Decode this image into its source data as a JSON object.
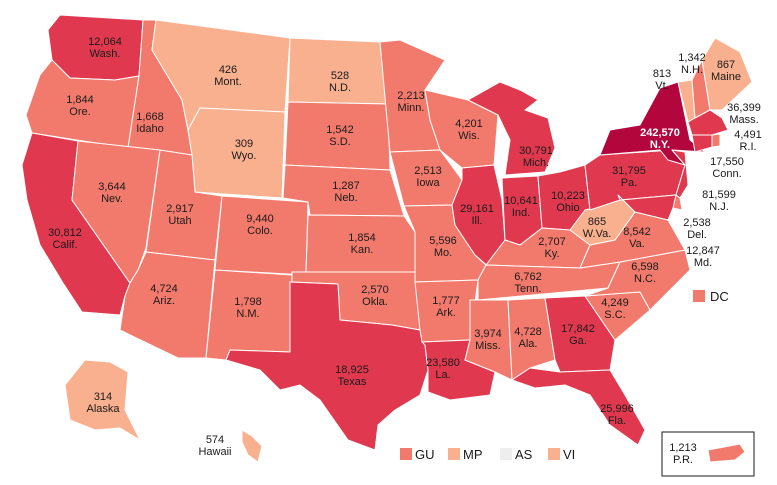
{
  "colors": {
    "level1": "#f9b08f",
    "level2": "#f27a6c",
    "level3": "#e0394f",
    "level4": "#b3063d",
    "none": "#eeeeee",
    "text_dark": "#1a1a1a",
    "text_light": "#ffffff"
  },
  "states": [
    {
      "id": "wa",
      "value": "12,064",
      "abbr": "Wash.",
      "level": 3
    },
    {
      "id": "or",
      "value": "1,844",
      "abbr": "Ore.",
      "level": 2
    },
    {
      "id": "ca",
      "value": "30,812",
      "abbr": "Calif.",
      "level": 3
    },
    {
      "id": "id",
      "value": "1,668",
      "abbr": "Idaho",
      "level": 2
    },
    {
      "id": "nv",
      "value": "3,644",
      "abbr": "Nev.",
      "level": 2
    },
    {
      "id": "mt",
      "value": "426",
      "abbr": "Mont.",
      "level": 1
    },
    {
      "id": "wy",
      "value": "309",
      "abbr": "Wyo.",
      "level": 1
    },
    {
      "id": "ut",
      "value": "2,917",
      "abbr": "Utah",
      "level": 2
    },
    {
      "id": "co",
      "value": "9,440",
      "abbr": "Colo.",
      "level": 2
    },
    {
      "id": "az",
      "value": "4,724",
      "abbr": "Ariz.",
      "level": 2
    },
    {
      "id": "nm",
      "value": "1,798",
      "abbr": "N.M.",
      "level": 2
    },
    {
      "id": "nd",
      "value": "528",
      "abbr": "N.D.",
      "level": 1
    },
    {
      "id": "sd",
      "value": "1,542",
      "abbr": "S.D.",
      "level": 2
    },
    {
      "id": "ne",
      "value": "1,287",
      "abbr": "Neb.",
      "level": 2
    },
    {
      "id": "ks",
      "value": "1,854",
      "abbr": "Kan.",
      "level": 2
    },
    {
      "id": "ok",
      "value": "2,570",
      "abbr": "Okla.",
      "level": 2
    },
    {
      "id": "tx",
      "value": "18,925",
      "abbr": "Texas",
      "level": 3
    },
    {
      "id": "mn",
      "value": "2,213",
      "abbr": "Minn.",
      "level": 2
    },
    {
      "id": "ia",
      "value": "2,513",
      "abbr": "Iowa",
      "level": 2
    },
    {
      "id": "mo",
      "value": "5,596",
      "abbr": "Mo.",
      "level": 2
    },
    {
      "id": "ar",
      "value": "1,777",
      "abbr": "Ark.",
      "level": 2
    },
    {
      "id": "la",
      "value": "23,580",
      "abbr": "La.",
      "level": 3
    },
    {
      "id": "wi",
      "value": "4,201",
      "abbr": "Wis.",
      "level": 2
    },
    {
      "id": "il",
      "value": "29,161",
      "abbr": "Ill.",
      "level": 3
    },
    {
      "id": "mi",
      "value": "30,791",
      "abbr": "Mich.",
      "level": 3
    },
    {
      "id": "in",
      "value": "10,641",
      "abbr": "Ind.",
      "level": 3
    },
    {
      "id": "oh",
      "value": "10,223",
      "abbr": "Ohio",
      "level": 3
    },
    {
      "id": "ky",
      "value": "2,707",
      "abbr": "Ky.",
      "level": 2
    },
    {
      "id": "tn",
      "value": "6,762",
      "abbr": "Tenn.",
      "level": 2
    },
    {
      "id": "ms",
      "value": "3,974",
      "abbr": "Miss.",
      "level": 2
    },
    {
      "id": "al",
      "value": "4,728",
      "abbr": "Ala.",
      "level": 2
    },
    {
      "id": "ga",
      "value": "17,842",
      "abbr": "Ga.",
      "level": 3
    },
    {
      "id": "fl",
      "value": "25,996",
      "abbr": "Fla.",
      "level": 3
    },
    {
      "id": "sc",
      "value": "4,249",
      "abbr": "S.C.",
      "level": 2
    },
    {
      "id": "nc",
      "value": "6,598",
      "abbr": "N.C.",
      "level": 2
    },
    {
      "id": "va",
      "value": "8,542",
      "abbr": "Va.",
      "level": 2
    },
    {
      "id": "wv",
      "value": "865",
      "abbr": "W.Va.",
      "level": 1
    },
    {
      "id": "pa",
      "value": "31,795",
      "abbr": "Pa.",
      "level": 3
    },
    {
      "id": "ny",
      "value": "242,570",
      "abbr": "N.Y.",
      "level": 4
    },
    {
      "id": "me",
      "value": "867",
      "abbr": "Maine",
      "level": 1
    },
    {
      "id": "nh",
      "value": "1,342",
      "abbr": "N.H.",
      "level": 2
    },
    {
      "id": "vt",
      "value": "813",
      "abbr": "Vt.",
      "level": 1
    },
    {
      "id": "ma",
      "value": "36,399",
      "abbr": "Mass.",
      "level": 3
    },
    {
      "id": "ri",
      "value": "4,491",
      "abbr": "R.I.",
      "level": 2
    },
    {
      "id": "ct",
      "value": "17,550",
      "abbr": "Conn.",
      "level": 3
    },
    {
      "id": "nj",
      "value": "81,599",
      "abbr": "N.J.",
      "level": 3
    },
    {
      "id": "de",
      "value": "2,538",
      "abbr": "Del.",
      "level": 2
    },
    {
      "id": "md",
      "value": "12,847",
      "abbr": "Md.",
      "level": 3
    },
    {
      "id": "ak",
      "value": "314",
      "abbr": "Alaska",
      "level": 1
    },
    {
      "id": "hi",
      "value": "574",
      "abbr": "Hawaii",
      "level": 1
    },
    {
      "id": "pr",
      "value": "1,213",
      "abbr": "P.R.",
      "level": 2
    }
  ],
  "legend": [
    {
      "label": "DC",
      "level": 2
    },
    {
      "label": "GU",
      "level": 2
    },
    {
      "label": "MP",
      "level": 1
    },
    {
      "label": "AS",
      "level": 0
    },
    {
      "label": "VI",
      "level": 1
    }
  ]
}
